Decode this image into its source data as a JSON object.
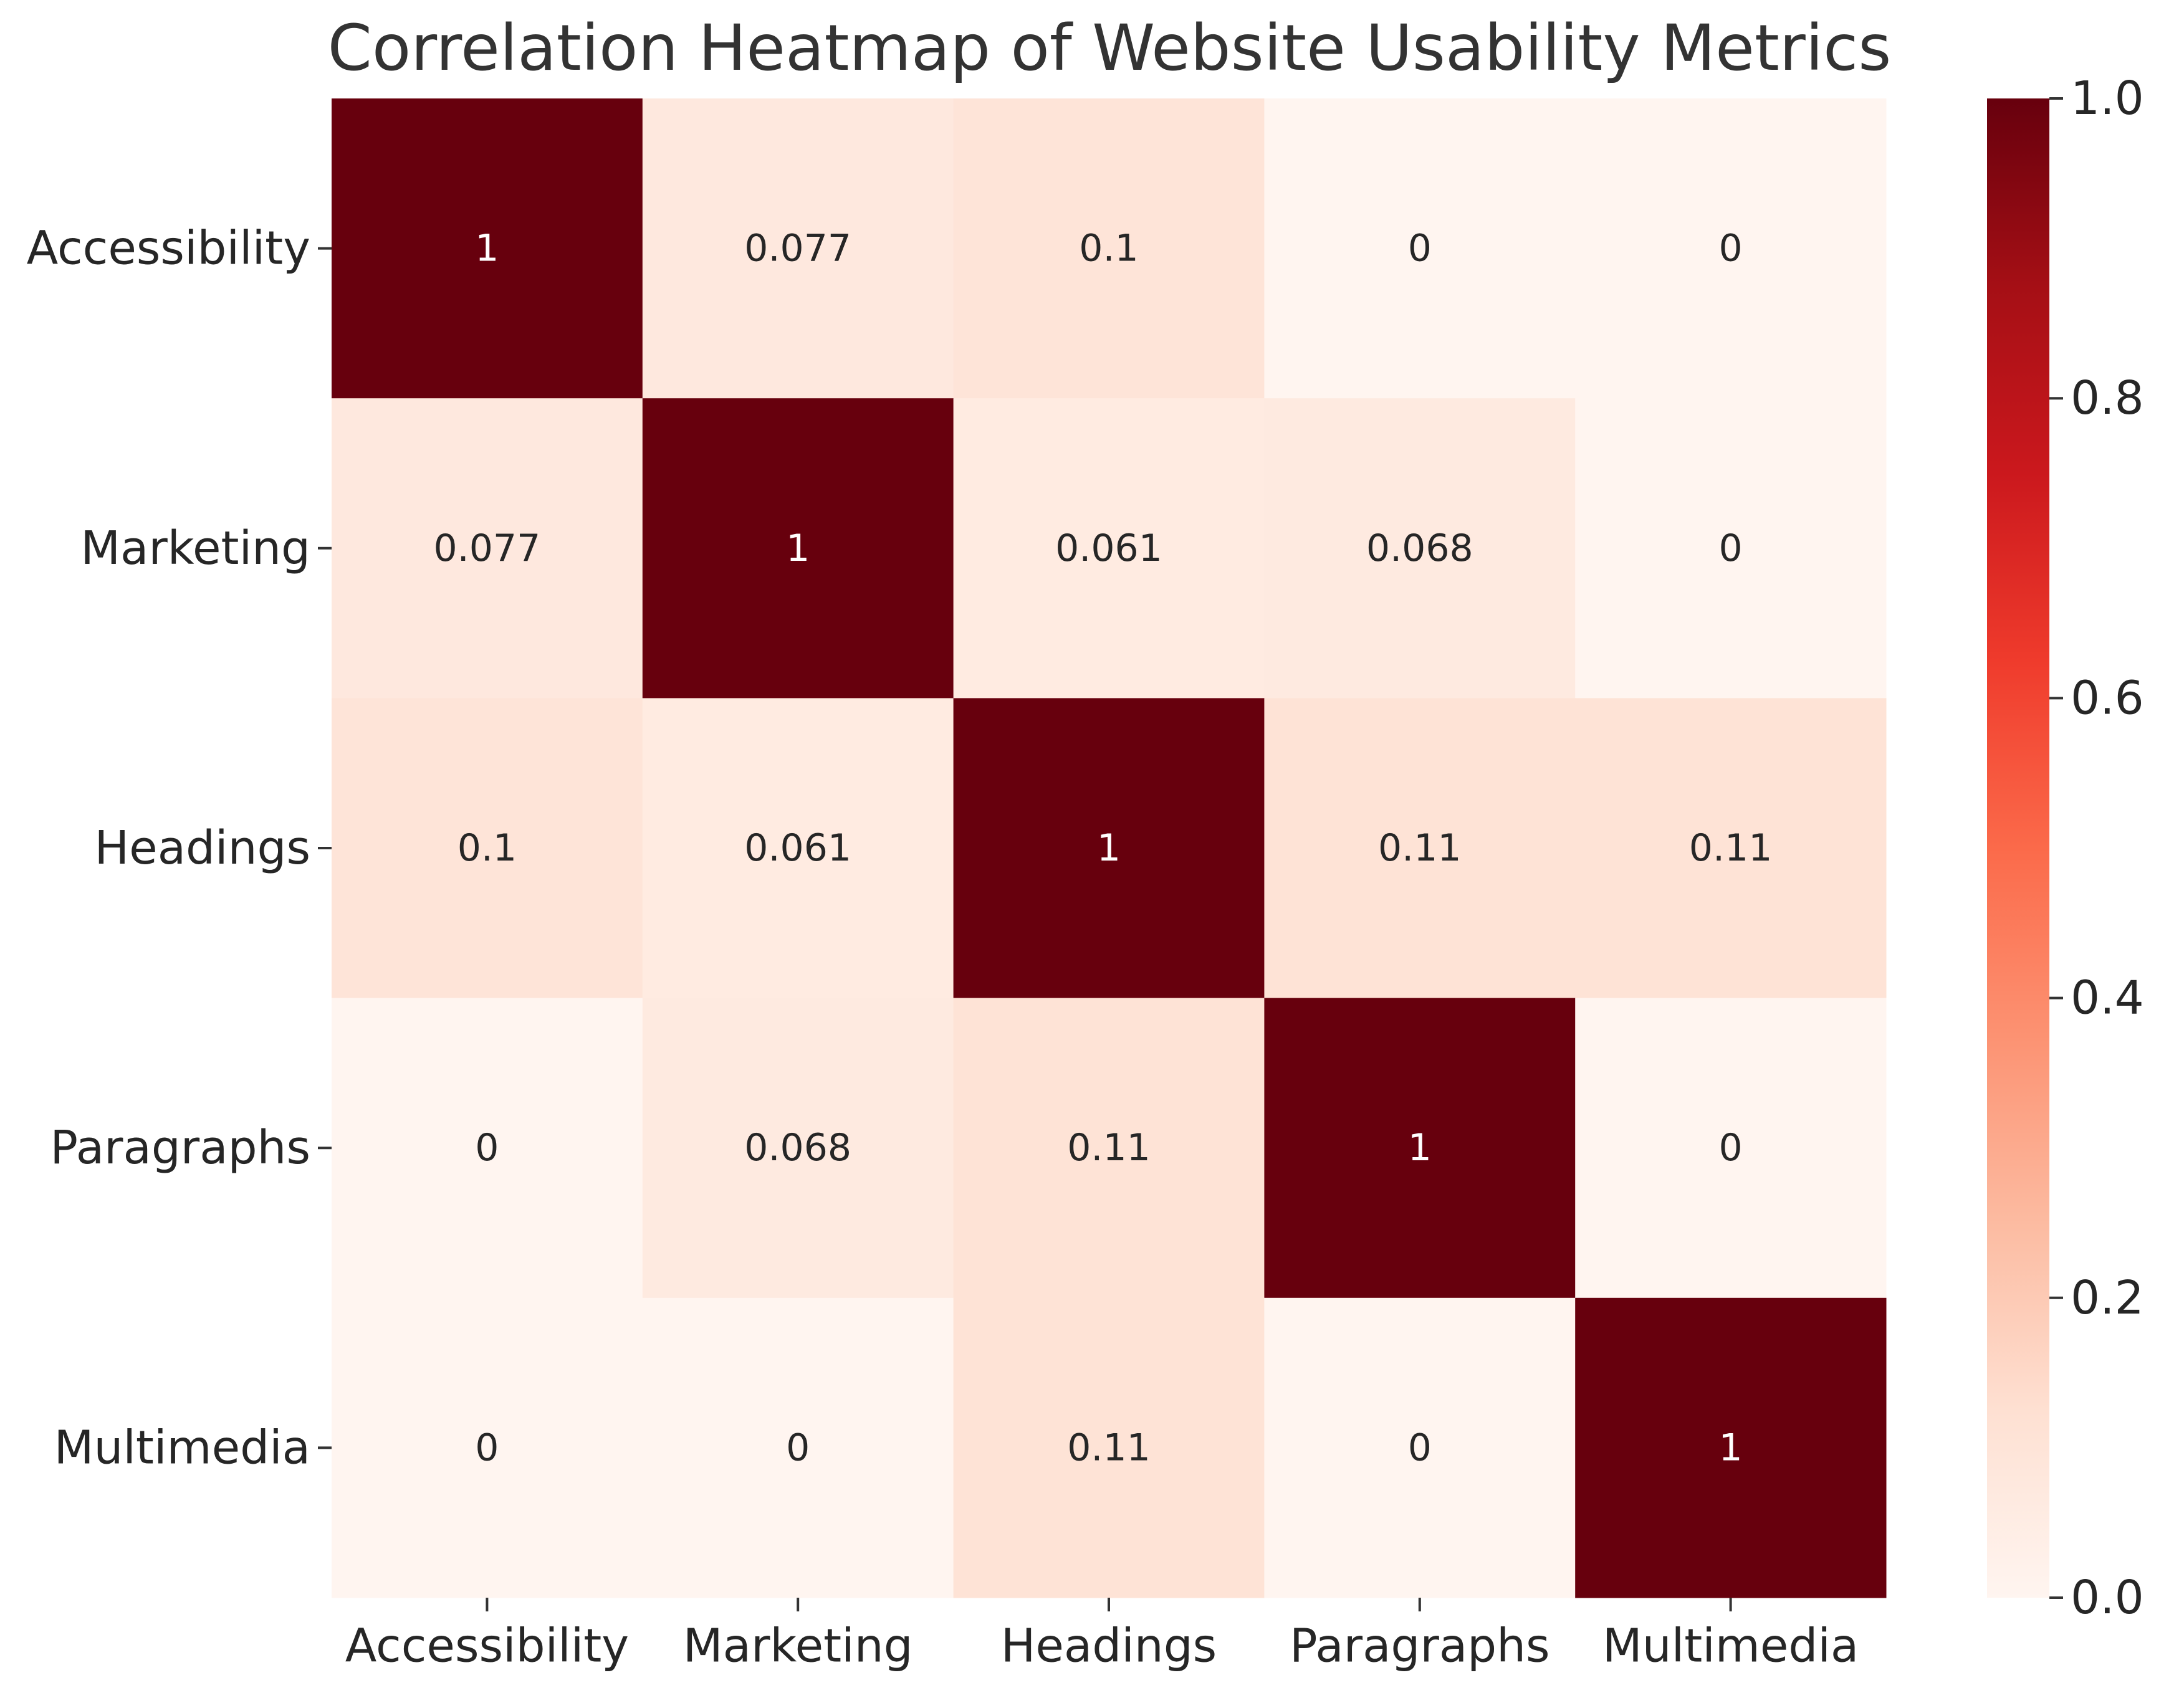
{
  "chart_data": {
    "type": "heatmap",
    "title": "Correlation Heatmap of Website Usability Metrics",
    "xlabel": "",
    "ylabel": "",
    "x_labels": [
      "Accessibility",
      "Marketing",
      "Headings",
      "Paragraphs",
      "Multimedia"
    ],
    "y_labels": [
      "Accessibility",
      "Marketing",
      "Headings",
      "Paragraphs",
      "Multimedia"
    ],
    "values": [
      [
        1,
        0.077,
        0.1,
        0,
        0
      ],
      [
        0.077,
        1,
        0.061,
        0.068,
        0
      ],
      [
        0.1,
        0.061,
        1,
        0.11,
        0.11
      ],
      [
        0,
        0.068,
        0.11,
        1,
        0
      ],
      [
        0,
        0,
        0.11,
        0,
        1
      ]
    ],
    "annotations": [
      [
        "1",
        "0.077",
        "0.1",
        "0",
        "0"
      ],
      [
        "0.077",
        "1",
        "0.061",
        "0.068",
        "0"
      ],
      [
        "0.1",
        "0.061",
        "1",
        "0.11",
        "0.11"
      ],
      [
        "0",
        "0.068",
        "0.11",
        "1",
        "0"
      ],
      [
        "0",
        "0",
        "0.11",
        "0",
        "1"
      ]
    ],
    "colorbar": {
      "range": [
        0.0,
        1.0
      ],
      "ticks": [
        0.0,
        0.2,
        0.4,
        0.6,
        0.8,
        1.0
      ],
      "tick_labels": [
        "0.0",
        "0.2",
        "0.4",
        "0.6",
        "0.8",
        "1.0"
      ],
      "colormap": "Reds",
      "stops": [
        "#fff5f0",
        "#fee0d2",
        "#fcbba1",
        "#fc9272",
        "#fb6a4a",
        "#ef3b2c",
        "#cb181d",
        "#a50f15",
        "#67000d"
      ]
    },
    "grid": false
  }
}
